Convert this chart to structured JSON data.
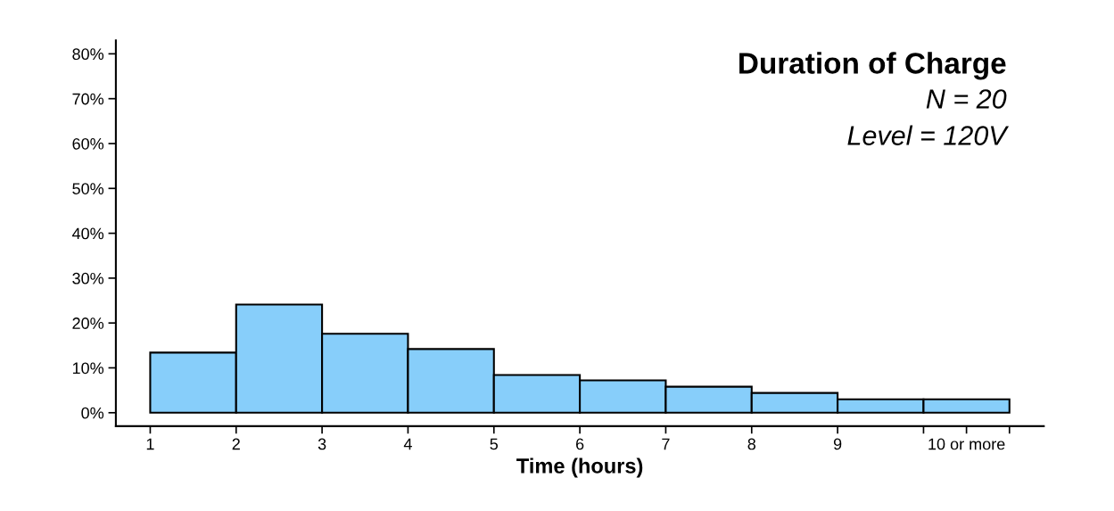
{
  "chart_data": {
    "type": "histogram",
    "title": "Duration of Charge",
    "subtitle": "N = 20",
    "annotations": [
      "Level = 120V"
    ],
    "xlabel": "Time (hours)",
    "bins": [
      1,
      2,
      3,
      4,
      5,
      6,
      7,
      8,
      9,
      10,
      11
    ],
    "values": [
      13.4,
      24.1,
      17.6,
      14.2,
      8.4,
      7.2,
      5.8,
      4.4,
      3.0,
      3.0
    ],
    "color": "#87cefa",
    "xlim": [
      0.6,
      11.4
    ],
    "xticks": [
      1,
      2,
      3,
      4,
      5,
      6,
      7,
      8,
      9,
      {
        "value": 10,
        "label": null
      },
      {
        "value": 10.5,
        "label": "10 or more"
      },
      {
        "value": 11,
        "label": null
      }
    ],
    "ylim": [
      -3,
      83
    ],
    "yticks": [
      {
        "value": 0,
        "label": "0%"
      },
      {
        "value": 10,
        "label": "10%"
      },
      {
        "value": 20,
        "label": "20%"
      },
      {
        "value": 30,
        "label": "30%"
      },
      {
        "value": 40,
        "label": "40%"
      },
      {
        "value": 50,
        "label": "50%"
      },
      {
        "value": 60,
        "label": "60%"
      },
      {
        "value": 70,
        "label": "70%"
      },
      {
        "value": 80,
        "label": "80%"
      }
    ],
    "grid": false,
    "legend": false
  }
}
